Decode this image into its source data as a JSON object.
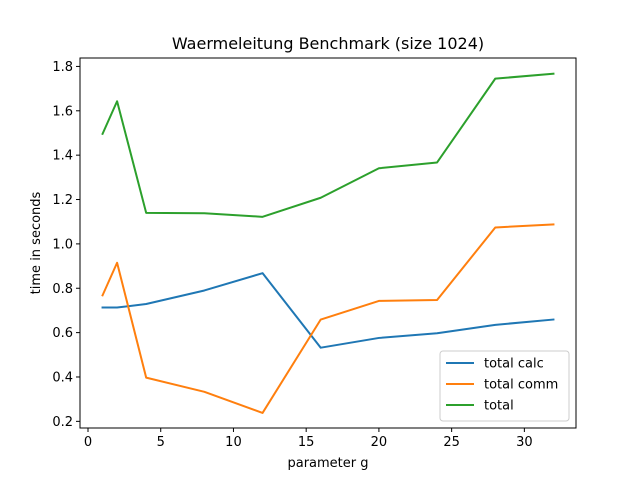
{
  "chart_data": {
    "type": "line",
    "title": "Waermeleitung Benchmark (size 1024)",
    "xlabel": "parameter g",
    "ylabel": "time in seconds",
    "xlim": [
      -0.55,
      33.55
    ],
    "ylim": [
      0.17,
      1.838
    ],
    "xticks": [
      0,
      5,
      10,
      15,
      20,
      25,
      30
    ],
    "yticks": [
      0.2,
      0.4,
      0.6,
      0.8,
      1.0,
      1.2,
      1.4,
      1.6,
      1.8
    ],
    "ytick_labels": [
      "0.2",
      "0.4",
      "0.6",
      "0.8",
      "1.0",
      "1.2",
      "1.4",
      "1.6",
      "1.8"
    ],
    "grid": false,
    "legend_position": "lower-right",
    "x": [
      1,
      2,
      4,
      8,
      12,
      16,
      20,
      24,
      28,
      32
    ],
    "series": [
      {
        "name": "total calc",
        "color": "#1f77b4",
        "values": [
          0.713,
          0.713,
          0.729,
          0.79,
          0.868,
          0.532,
          0.576,
          0.597,
          0.635,
          0.659
        ]
      },
      {
        "name": "total comm",
        "color": "#ff7f0e",
        "values": [
          0.768,
          0.915,
          0.397,
          0.333,
          0.238,
          0.659,
          0.743,
          0.747,
          1.074,
          1.088
        ]
      },
      {
        "name": "total",
        "color": "#2ca02c",
        "values": [
          1.496,
          1.643,
          1.14,
          1.138,
          1.122,
          1.208,
          1.341,
          1.367,
          1.745,
          1.767
        ]
      }
    ]
  }
}
